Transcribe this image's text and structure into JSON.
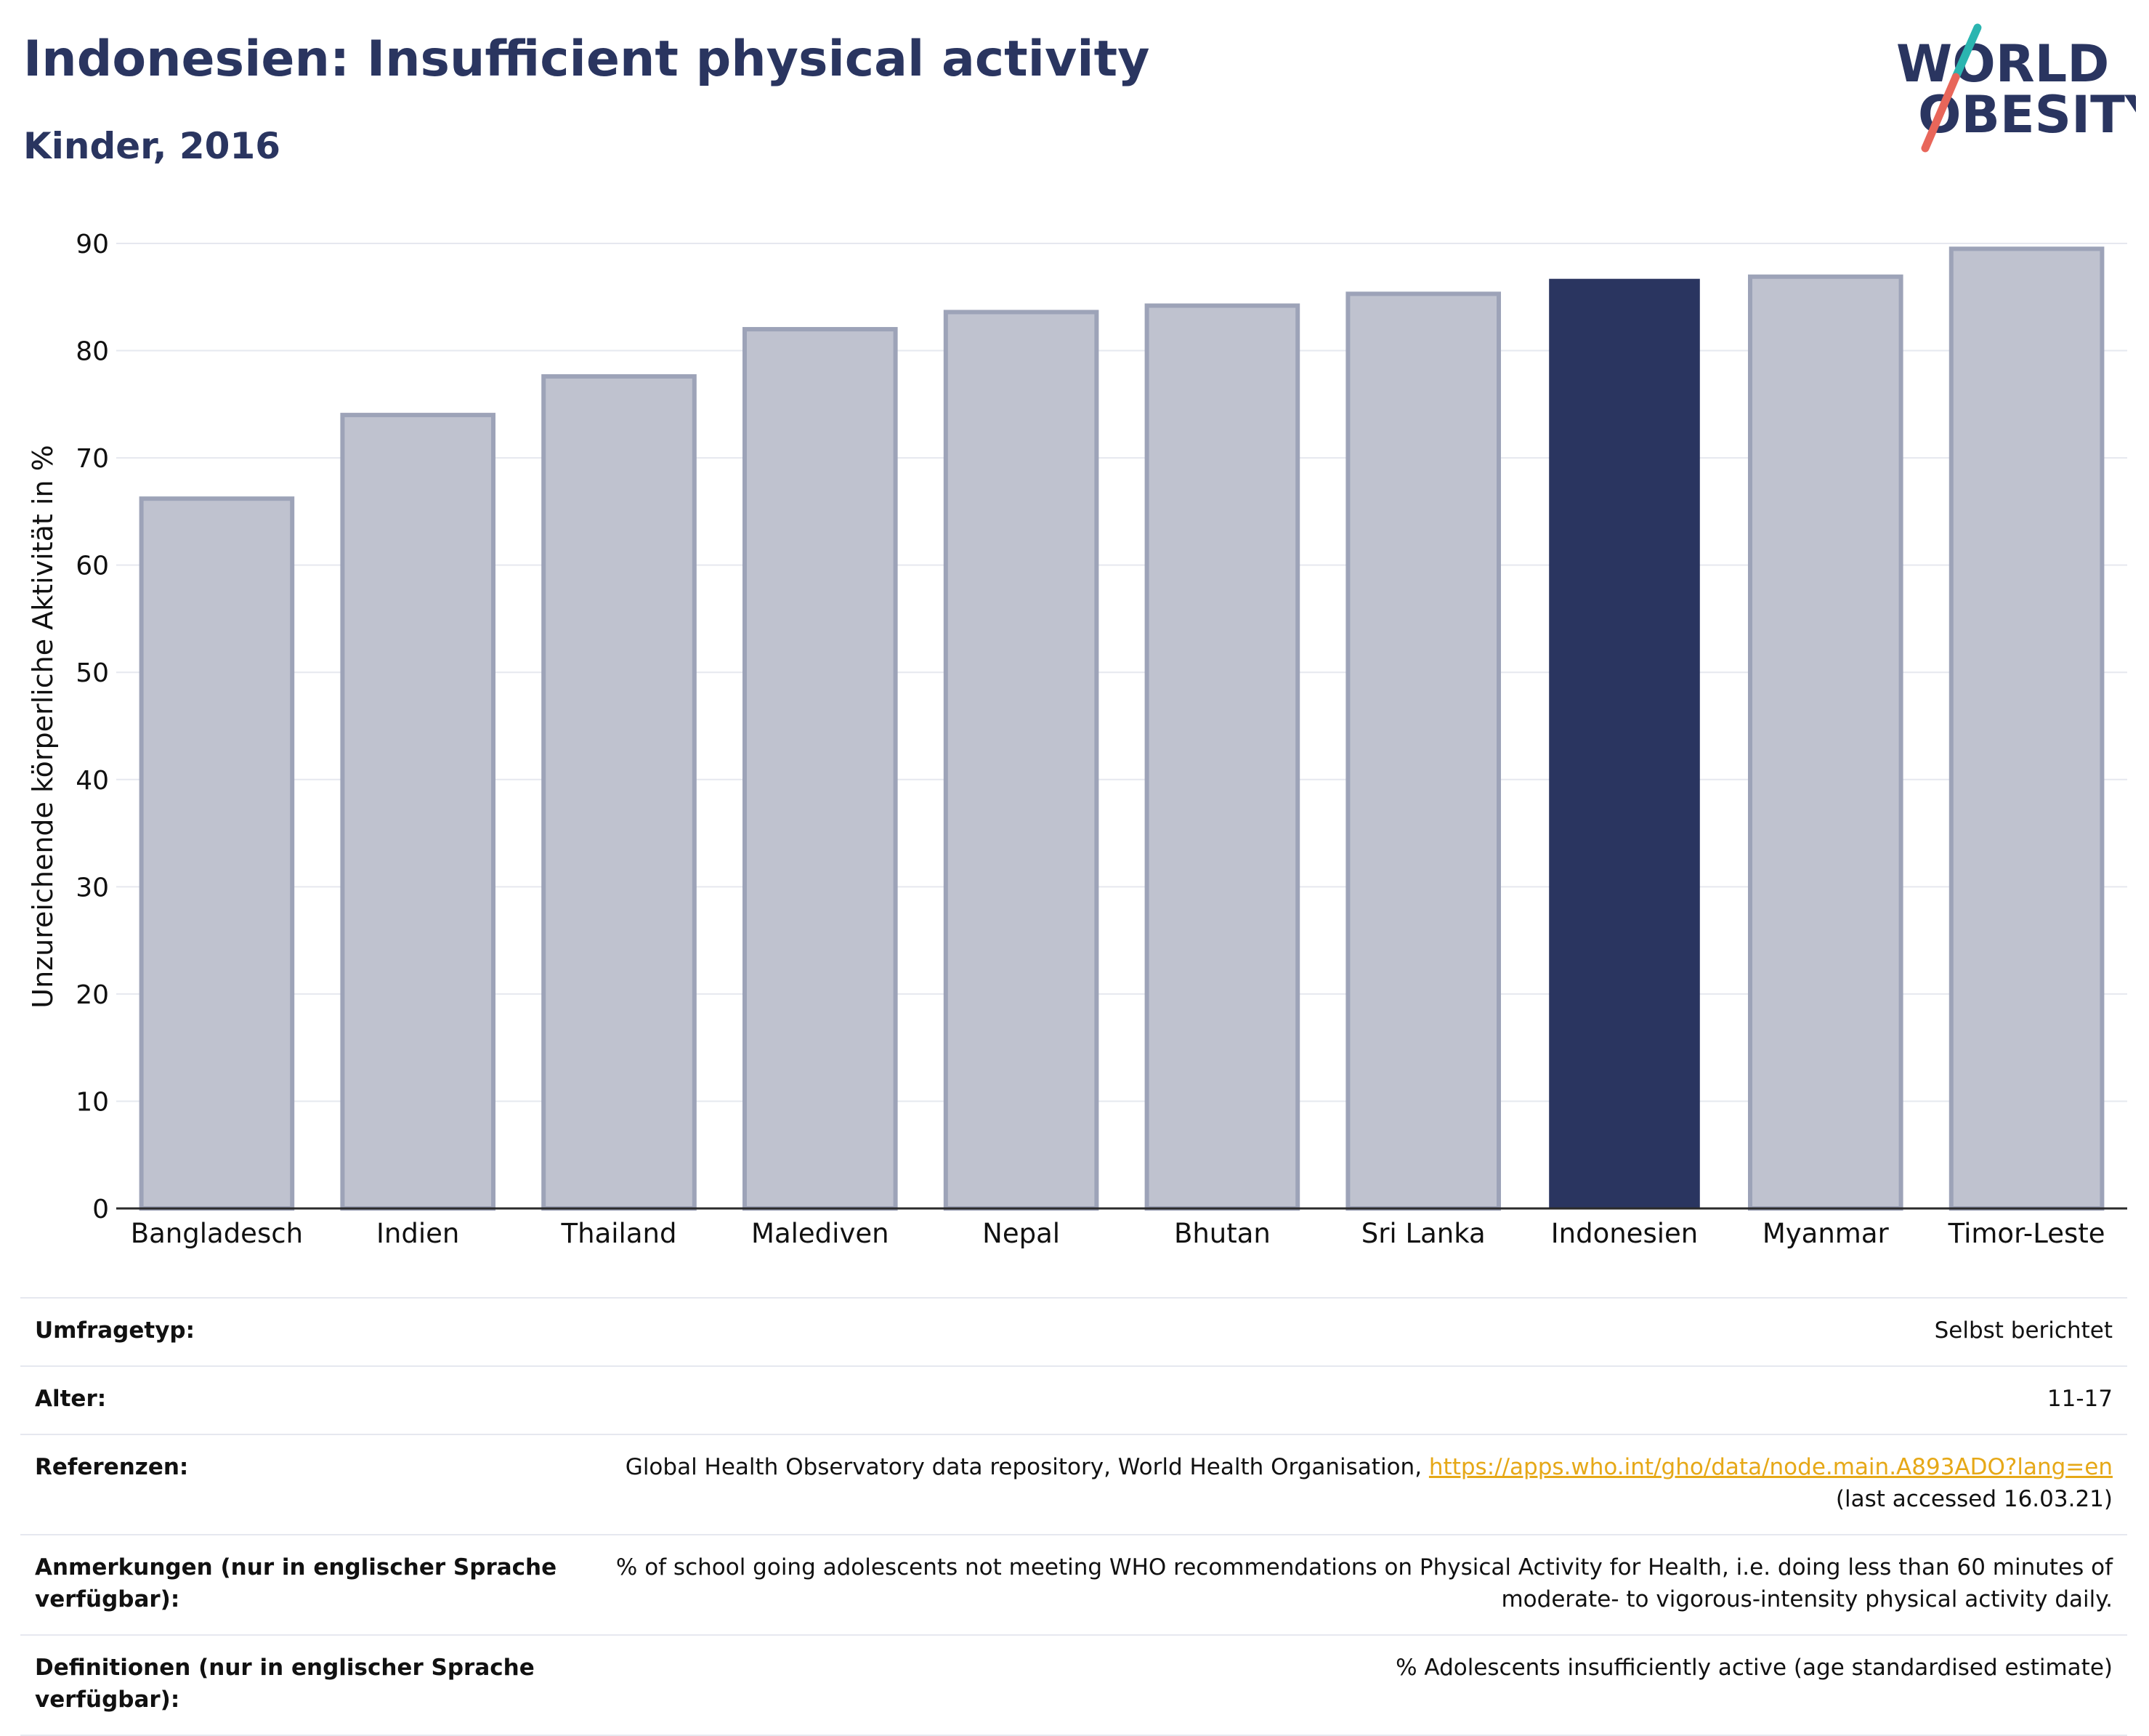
{
  "header": {
    "title": "Indonesien: Insufficient physical activity",
    "subtitle": "Kinder, 2016"
  },
  "logo": {
    "line1": "WORLD",
    "line2": "OBESITY",
    "accent_teal": "#2bb5b0",
    "accent_red": "#e8665a",
    "text_color": "#2a3560"
  },
  "chart_data": {
    "type": "bar",
    "categories": [
      "Bangladesch",
      "Indien",
      "Thailand",
      "Malediven",
      "Nepal",
      "Bhutan",
      "Sri Lanka",
      "Indonesien",
      "Myanmar",
      "Timor-Leste"
    ],
    "values": [
      66.2,
      74.0,
      77.6,
      82.0,
      83.6,
      84.2,
      85.3,
      86.7,
      86.9,
      89.5
    ],
    "highlight": "Indonesien",
    "ylabel": "Unzureichende körperliche Aktivität in %",
    "xlabel": "",
    "ylim": [
      0,
      90
    ],
    "yticks": [
      0,
      10,
      20,
      30,
      40,
      50,
      60,
      70,
      80,
      90
    ],
    "grid": true,
    "colors": {
      "bar": "#bfc2cf",
      "bar_border": "#9da3b8",
      "highlight": "#2a3560"
    }
  },
  "info": [
    {
      "label": "Umfragetyp:",
      "value": "Selbst berichtet"
    },
    {
      "label": "Alter:",
      "value": "11-17"
    },
    {
      "label": "Referenzen:",
      "value": "Global Health Observatory data repository, World Health Organisation, ",
      "link": "https://apps.who.int/gho/data/node.main.A893ADO?lang=en",
      "value2": "(last accessed 16.03.21)"
    },
    {
      "label": "Anmerkungen (nur in englischer Sprache verfügbar):",
      "value": "% of school going adolescents not meeting WHO recommendations on Physical Activity for Health, i.e. doing less than 60 minutes of",
      "value2": "moderate- to vigorous-intensity physical activity daily."
    },
    {
      "label": "Definitionen (nur in englischer Sprache verfügbar):",
      "value": "% Adolescents insufficiently active (age standardised estimate)"
    }
  ]
}
